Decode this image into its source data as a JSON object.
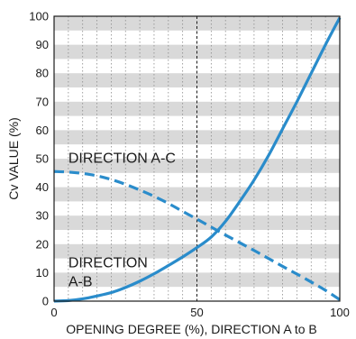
{
  "chart_data": {
    "type": "line",
    "xlabel": "OPENING DEGREE (%), DIRECTION A to B",
    "ylabel": "Cv VALUE (%)",
    "xlim": [
      0,
      100
    ],
    "ylim": [
      0,
      100
    ],
    "x_ticks": [
      "0",
      "50",
      "100"
    ],
    "y_ticks": [
      "0",
      "10",
      "20",
      "30",
      "40",
      "50",
      "60",
      "70",
      "80",
      "90",
      "100"
    ],
    "grid": "horizontal gray bands every 5%, vertical dotted lines every 5%, dashed reference line at 50%",
    "series": [
      {
        "name": "DIRECTION A-B",
        "style": "solid",
        "color": "#2a8ccb",
        "x": [
          0,
          5,
          10,
          15,
          20,
          25,
          30,
          35,
          40,
          45,
          50,
          55,
          60,
          65,
          70,
          75,
          80,
          85,
          90,
          95,
          100
        ],
        "y": [
          0,
          0.2,
          0.8,
          1.8,
          3,
          4.8,
          7,
          9.6,
          12.5,
          15.5,
          18.8,
          22.5,
          28,
          35,
          42.5,
          51,
          60.5,
          70,
          80,
          90,
          99.5
        ]
      },
      {
        "name": "DIRECTION A-C",
        "style": "dashed",
        "color": "#2a8ccb",
        "x": [
          0,
          5,
          10,
          15,
          20,
          25,
          30,
          35,
          40,
          45,
          50,
          55,
          60,
          65,
          70,
          75,
          80,
          85,
          90,
          95,
          100
        ],
        "y": [
          45.5,
          45.3,
          44.8,
          44,
          42.7,
          41,
          39,
          36.8,
          34.3,
          31.5,
          28.8,
          26,
          23.2,
          20.5,
          17.8,
          15,
          12.2,
          9.5,
          6.7,
          3.8,
          0.5
        ]
      }
    ],
    "annotations": [
      {
        "text": "DIRECTION A-C",
        "series": "DIRECTION A-C"
      },
      {
        "lines": [
          "DIRECTION",
          "A-B"
        ],
        "series": "DIRECTION A-B"
      }
    ]
  },
  "colors": {
    "line": "#2a8ccb",
    "band": "#d9d9d9",
    "axis": "#1a1a1a"
  }
}
